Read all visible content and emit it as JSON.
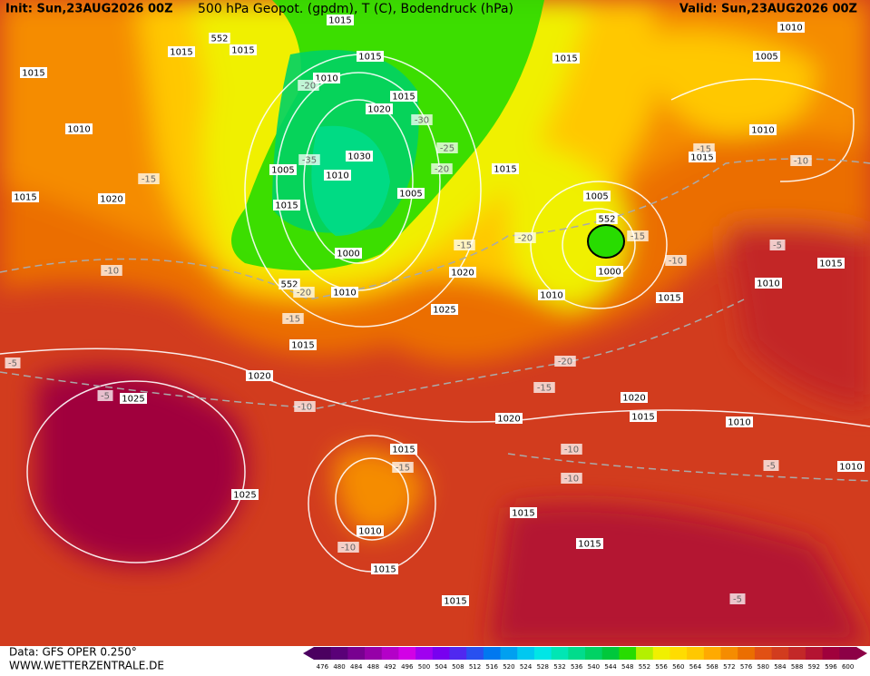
{
  "header": {
    "init": "Init: Sun,23AUG2026 00Z",
    "title": "500 hPa Geopot. (gpdm), T (C), Bodendruck (hPa)",
    "valid": "Valid: Sun,23AUG2026 00Z"
  },
  "footer": {
    "data": "Data: GFS OPER 0.250°",
    "site": "WWW.WETTERZENTRALE.DE"
  },
  "map_labels": [
    "1015",
    "1010",
    "1015",
    "1020",
    "1015",
    "1015",
    "552",
    "1015",
    "1010",
    "1015",
    "1015",
    "1020",
    "1030",
    "1005",
    "1010",
    "1015",
    "1005",
    "1000",
    "552",
    "1010",
    "1015",
    "1020",
    "1025",
    "1020",
    "1015",
    "1015",
    "1005",
    "552",
    "1000",
    "1010",
    "1015",
    "1010",
    "1005",
    "1010",
    "1015",
    "1015",
    "1010",
    "1020",
    "1015",
    "1010",
    "1010",
    "1020",
    "1015",
    "1025",
    "1025",
    "1010",
    "1015",
    "1015",
    "1015",
    "1015",
    "-20",
    "-30",
    "-25",
    "-35",
    "-20",
    "-15",
    "-15",
    "-20",
    "-15",
    "-10",
    "-10",
    "-20",
    "-15",
    "-5",
    "-5",
    "-10",
    "-20",
    "-15",
    "-10",
    "-10",
    "-15",
    "-10",
    "-15",
    "-10",
    "-5",
    "-5",
    "-5"
  ],
  "colorbar": {
    "labels": [
      "476",
      "480",
      "484",
      "488",
      "492",
      "496",
      "500",
      "504",
      "508",
      "512",
      "516",
      "520",
      "524",
      "528",
      "532",
      "536",
      "540",
      "544",
      "548",
      "552",
      "556",
      "560",
      "564",
      "568",
      "572",
      "576",
      "580",
      "584",
      "588",
      "592",
      "596",
      "600"
    ],
    "colors": [
      "#4b0060",
      "#5a0078",
      "#780090",
      "#9600a8",
      "#b400c8",
      "#d200e6",
      "#a000f0",
      "#7800f0",
      "#5028f0",
      "#2850f0",
      "#0078f0",
      "#00a0f0",
      "#00c8f0",
      "#00e6e6",
      "#00e6b4",
      "#00dc8c",
      "#00d264",
      "#00c83c",
      "#28dc00",
      "#b4f000",
      "#f0f000",
      "#ffdc00",
      "#ffc800",
      "#ffaa00",
      "#f58c00",
      "#eb6e00",
      "#e15014",
      "#d23c1e",
      "#c32828",
      "#b41432",
      "#a0003c",
      "#8c0046"
    ]
  }
}
